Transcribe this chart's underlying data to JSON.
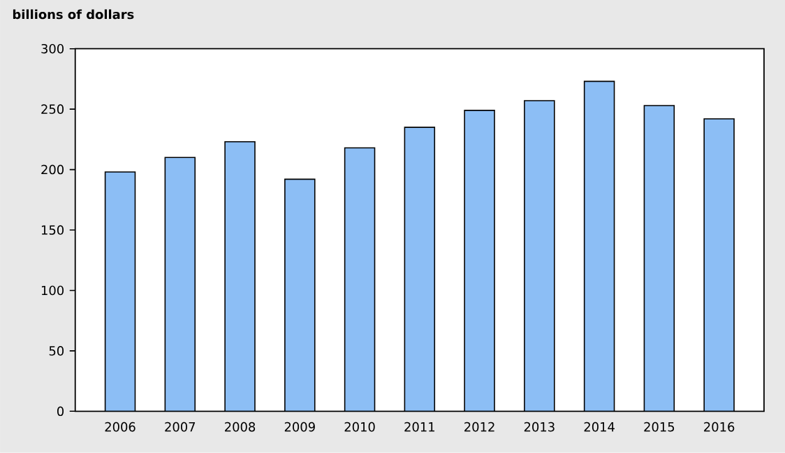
{
  "chart_data": {
    "type": "bar",
    "ylabel": "billions of dollars",
    "categories": [
      "2006",
      "2007",
      "2008",
      "2009",
      "2010",
      "2011",
      "2012",
      "2013",
      "2014",
      "2015",
      "2016"
    ],
    "values": [
      198,
      210,
      223,
      192,
      218,
      235,
      249,
      257,
      273,
      253,
      242
    ],
    "color": "#8cbef5",
    "ylim": [
      0,
      300
    ],
    "yticks": [
      0,
      50,
      100,
      150,
      200,
      250,
      300
    ]
  }
}
